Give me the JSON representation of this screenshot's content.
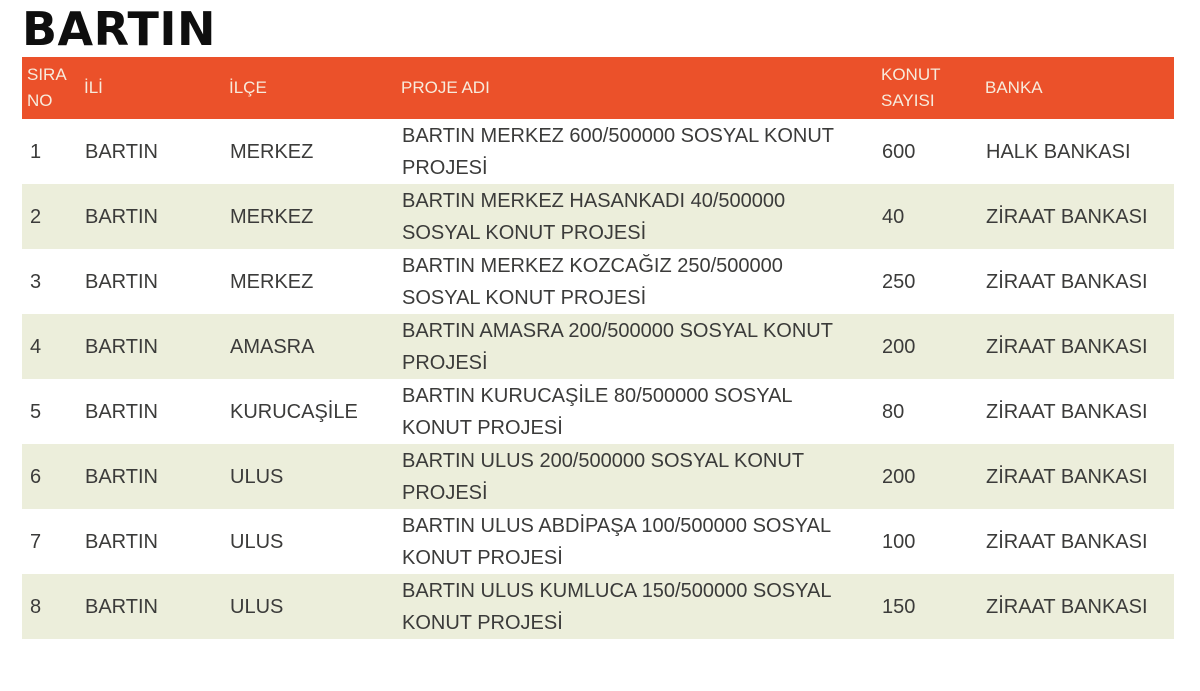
{
  "page": {
    "title": "BARTIN"
  },
  "colors": {
    "header_bg": "#EB512A",
    "header_text": "#F7EBDC",
    "row_bg": "#FFFFFF",
    "row_alt_bg": "#ECEEDB",
    "body_text": "#3B3B3A",
    "title_text": "#0E0E0E"
  },
  "table": {
    "columns": [
      {
        "key": "sira-no",
        "label": "SIRA NO"
      },
      {
        "key": "ili",
        "label": "İLİ"
      },
      {
        "key": "ilce",
        "label": "İLÇE"
      },
      {
        "key": "proje-adi",
        "label": "PROJE ADI"
      },
      {
        "key": "konut-sayisi",
        "label": "KONUT SAYISI"
      },
      {
        "key": "banka",
        "label": "BANKA"
      }
    ],
    "rows": [
      [
        "1",
        "BARTIN",
        "MERKEZ",
        "BARTIN MERKEZ 600/500000 SOSYAL KONUT PROJESİ",
        "600",
        "HALK BANKASI"
      ],
      [
        "2",
        "BARTIN",
        "MERKEZ",
        "BARTIN MERKEZ HASANKADI 40/500000 SOSYAL KONUT PROJESİ",
        "40",
        "ZİRAAT BANKASI"
      ],
      [
        "3",
        "BARTIN",
        "MERKEZ",
        "BARTIN MERKEZ KOZCAĞIZ 250/500000 SOSYAL KONUT PROJESİ",
        "250",
        "ZİRAAT BANKASI"
      ],
      [
        "4",
        "BARTIN",
        "AMASRA",
        "BARTIN AMASRA 200/500000 SOSYAL KONUT PROJESİ",
        "200",
        "ZİRAAT BANKASI"
      ],
      [
        "5",
        "BARTIN",
        "KURUCAŞİLE",
        "BARTIN KURUCAŞİLE 80/500000 SOSYAL KONUT PROJESİ",
        "80",
        "ZİRAAT BANKASI"
      ],
      [
        "6",
        "BARTIN",
        "ULUS",
        "BARTIN ULUS 200/500000 SOSYAL KONUT PROJESİ",
        "200",
        "ZİRAAT BANKASI"
      ],
      [
        "7",
        "BARTIN",
        "ULUS",
        "BARTIN ULUS ABDİPAŞA 100/500000 SOSYAL KONUT PROJESİ",
        "100",
        "ZİRAAT BANKASI"
      ],
      [
        "8",
        "BARTIN",
        "ULUS",
        "BARTIN ULUS KUMLUCA 150/500000 SOSYAL KONUT PROJESİ",
        "150",
        "ZİRAAT BANKASI"
      ]
    ]
  }
}
